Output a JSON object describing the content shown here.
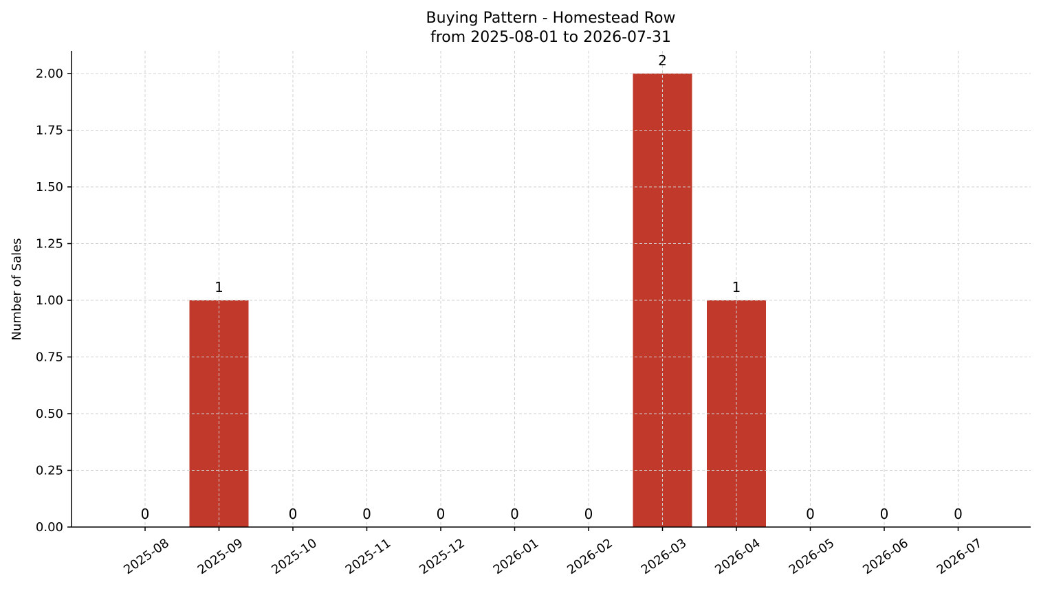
{
  "chart_data": {
    "type": "bar",
    "title": "Buying Pattern - Homestead Row",
    "subtitle": "from 2025-08-01 to 2026-07-31",
    "xlabel": "",
    "ylabel": "Number of Sales",
    "categories": [
      "2025-08",
      "2025-09",
      "2025-10",
      "2025-11",
      "2025-12",
      "2026-01",
      "2026-02",
      "2026-03",
      "2026-04",
      "2026-05",
      "2026-06",
      "2026-07"
    ],
    "values": [
      0,
      1,
      0,
      0,
      0,
      0,
      0,
      2,
      1,
      0,
      0,
      0
    ],
    "data_labels": [
      "0",
      "1",
      "0",
      "0",
      "0",
      "0",
      "0",
      "2",
      "1",
      "0",
      "0",
      "0"
    ],
    "ylim": [
      0,
      2.1
    ],
    "yticks": [
      "0.00",
      "0.25",
      "0.50",
      "0.75",
      "1.00",
      "1.25",
      "1.50",
      "1.75",
      "2.00"
    ],
    "grid": true,
    "bar_color": "#c0392b"
  }
}
